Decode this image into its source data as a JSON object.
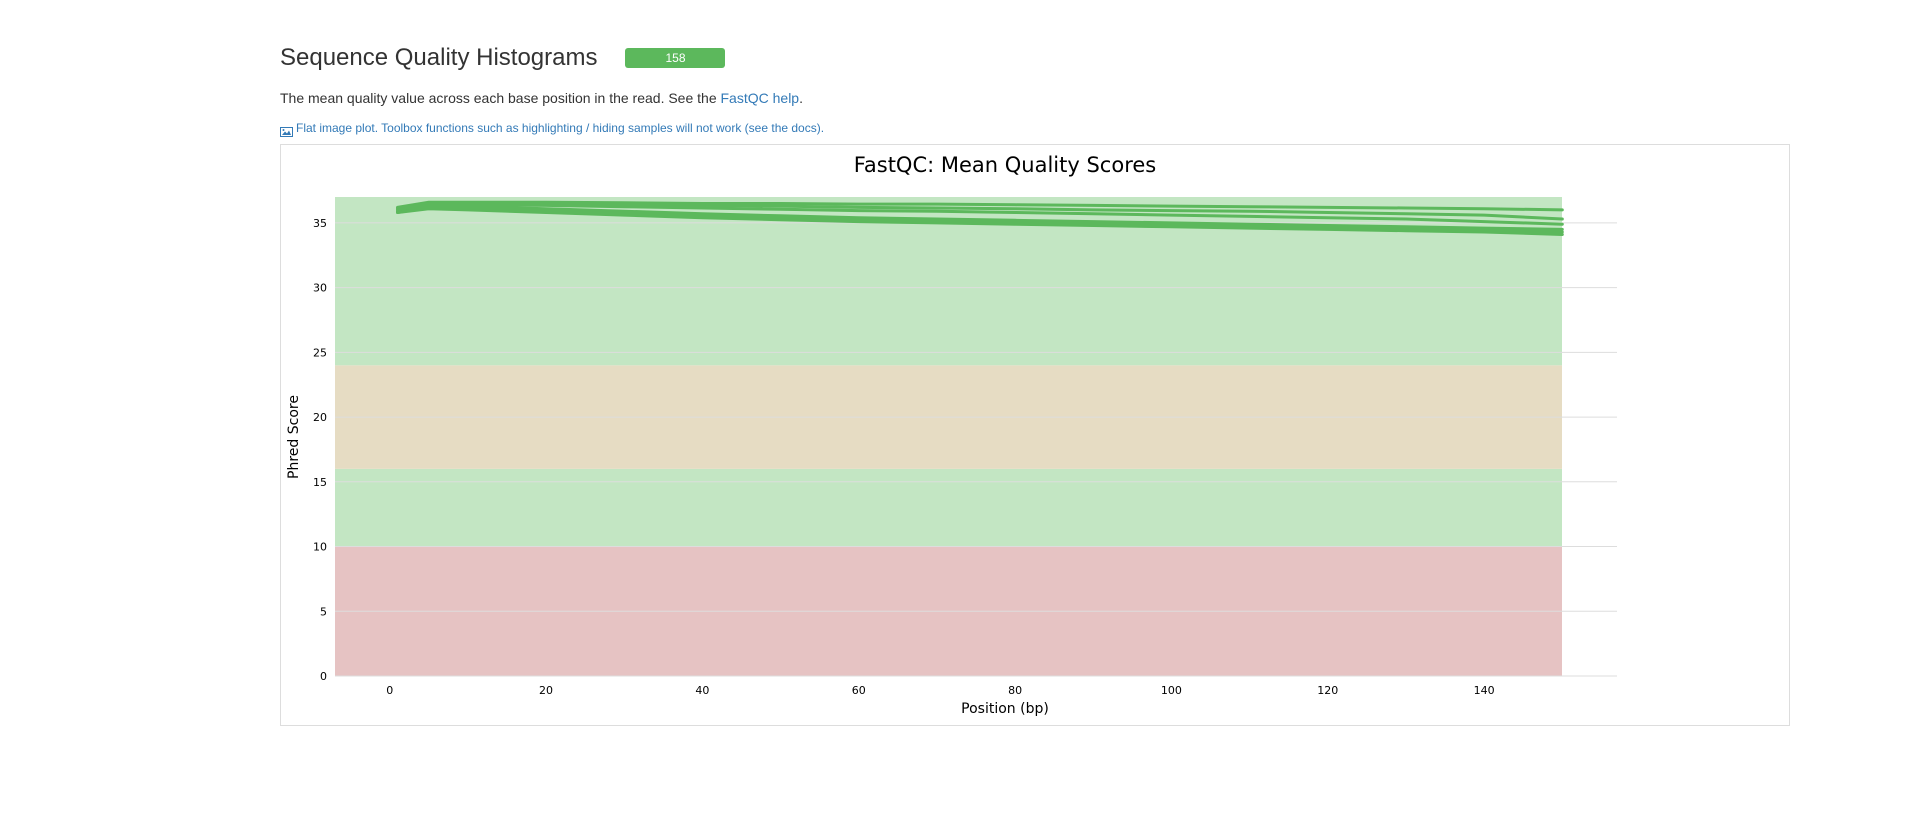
{
  "section": {
    "title": "Sequence Quality Histograms",
    "badge": "158",
    "desc_prefix": "The mean quality value across each base position in the read. See the ",
    "desc_link": "FastQC help",
    "desc_suffix": ".",
    "flat_note": "Flat image plot. Toolbox functions such as highlighting / hiding samples will not work (see the docs).",
    "flat_icon": "image-icon"
  },
  "colors": {
    "good_zone": "#c3e6c3",
    "warn_zone": "#e6dcc3",
    "fail_zone": "#e6c3c3",
    "line": "#5cb85c",
    "badge": "#5cb85c",
    "link": "#337ab7"
  },
  "chart_data": {
    "type": "line",
    "title": "FastQC: Mean Quality Scores",
    "xlabel": "Position (bp)",
    "ylabel": "Phred Score",
    "xlim": [
      -7,
      157
    ],
    "ylim": [
      0,
      37
    ],
    "xticks": [
      0,
      20,
      40,
      60,
      80,
      100,
      120,
      140
    ],
    "yticks": [
      0,
      5,
      10,
      15,
      20,
      25,
      30,
      35
    ],
    "grid": true,
    "zones": [
      {
        "from": 0,
        "to": 10,
        "color": "#e6c3c3"
      },
      {
        "from": 10,
        "to": 16,
        "color": "#c3e6c3"
      },
      {
        "from": 16,
        "to": 24,
        "color": "#e6dcc3"
      },
      {
        "from": 24,
        "to": 37,
        "color": "#c3e6c3"
      }
    ],
    "x": [
      1,
      5,
      10,
      20,
      30,
      40,
      50,
      60,
      70,
      80,
      90,
      100,
      110,
      120,
      130,
      140,
      150
    ],
    "series": [
      {
        "values": [
          36.2,
          36.6,
          36.6,
          36.6,
          36.55,
          36.5,
          36.5,
          36.45,
          36.45,
          36.4,
          36.35,
          36.3,
          36.25,
          36.2,
          36.15,
          36.1,
          36.0
        ]
      },
      {
        "values": [
          36.1,
          36.5,
          36.5,
          36.45,
          36.4,
          36.35,
          36.3,
          36.2,
          36.15,
          36.1,
          36.0,
          35.95,
          35.9,
          35.8,
          35.7,
          35.6,
          35.3
        ]
      },
      {
        "values": [
          36.0,
          36.4,
          36.4,
          36.35,
          36.25,
          36.15,
          36.05,
          35.95,
          35.9,
          35.8,
          35.7,
          35.6,
          35.5,
          35.4,
          35.3,
          35.1,
          34.9
        ]
      },
      {
        "values": [
          35.9,
          36.3,
          36.25,
          36.1,
          35.9,
          35.7,
          35.55,
          35.4,
          35.3,
          35.2,
          35.1,
          35.0,
          34.9,
          34.8,
          34.7,
          34.6,
          34.5
        ]
      },
      {
        "values": [
          35.8,
          36.2,
          36.15,
          35.95,
          35.75,
          35.55,
          35.4,
          35.25,
          35.15,
          35.05,
          34.95,
          34.85,
          34.75,
          34.65,
          34.55,
          34.45,
          34.3
        ]
      },
      {
        "values": [
          35.8,
          36.1,
          36.0,
          35.8,
          35.6,
          35.4,
          35.25,
          35.1,
          35.0,
          34.9,
          34.8,
          34.7,
          34.6,
          34.5,
          34.4,
          34.3,
          34.1
        ]
      }
    ]
  }
}
